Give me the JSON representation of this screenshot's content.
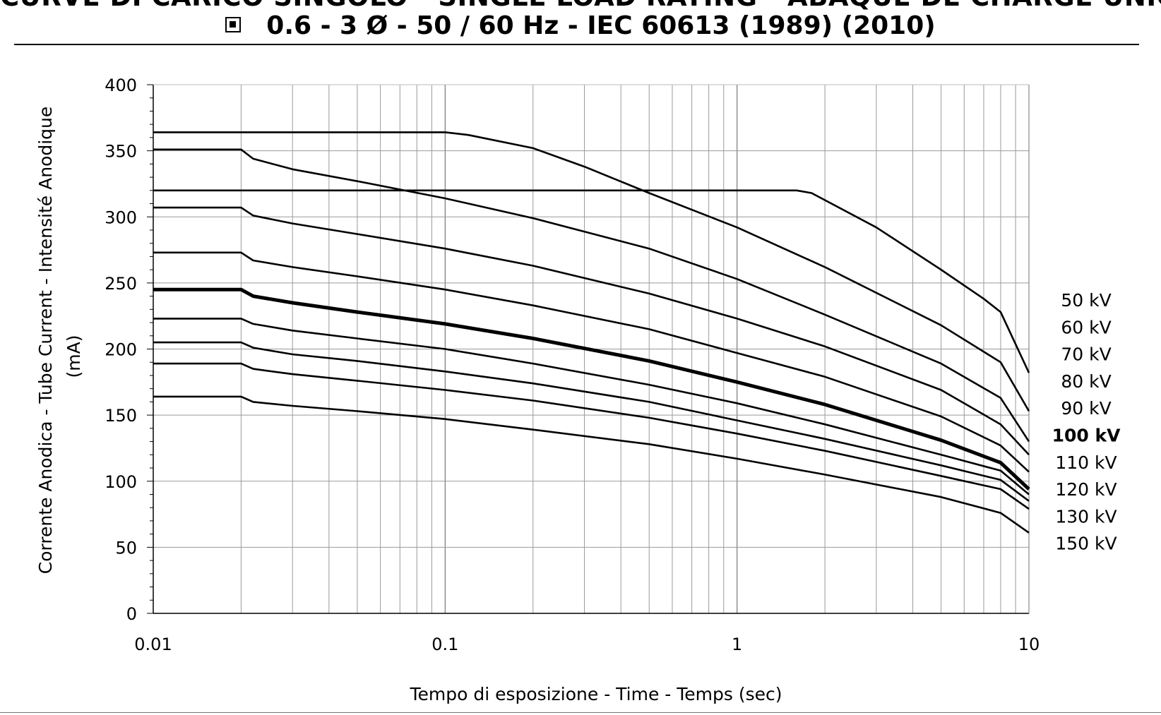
{
  "header": {
    "title_line1": "CURVE DI CARICO SINGOLO - SINGLE LOAD RATING - ABAQUE DE CHARGE UNIQUE",
    "title_line2": "0.6  -  3 Ø  -  50 / 60 Hz  -  IEC 60613 (1989) (2010)",
    "focal_icon": "square-focal-spot-icon"
  },
  "chart_data": {
    "type": "line",
    "title": "",
    "xlabel": "Tempo di esposizione - Time - Temps  (sec)",
    "ylabel_line1": "Corrente Anodica - Tube Current - Intensité Anodique",
    "ylabel_line2": "(mA)",
    "x_scale": "log",
    "xlim": [
      0.01,
      10
    ],
    "ylim": [
      0,
      400
    ],
    "x_ticks": [
      0.01,
      0.1,
      1,
      10
    ],
    "x_tick_labels": [
      "0.01",
      "0.1",
      "1",
      "10"
    ],
    "y_ticks": [
      0,
      50,
      100,
      150,
      200,
      250,
      300,
      350,
      400
    ],
    "y_tick_labels": [
      "0",
      "50",
      "100",
      "150",
      "200",
      "250",
      "300",
      "350",
      "400"
    ],
    "grid": true,
    "legend_placement": "right",
    "series": [
      {
        "name": "50 kV",
        "bold": false,
        "x": [
          0.01,
          1.6,
          1.8,
          3,
          5,
          7,
          8,
          10
        ],
        "y": [
          320,
          320,
          318,
          292,
          260,
          238,
          228,
          182
        ]
      },
      {
        "name": "60 kV",
        "bold": false,
        "x": [
          0.01,
          0.1,
          0.12,
          0.2,
          0.3,
          0.5,
          1,
          2,
          5,
          8,
          10
        ],
        "y": [
          364,
          364,
          362,
          352,
          338,
          318,
          292,
          262,
          218,
          190,
          153
        ]
      },
      {
        "name": "70 kV",
        "bold": false,
        "x": [
          0.01,
          0.02,
          0.022,
          0.03,
          0.05,
          0.1,
          0.2,
          0.5,
          1,
          2,
          5,
          8,
          10
        ],
        "y": [
          351,
          351,
          344,
          336,
          327,
          314,
          299,
          276,
          253,
          226,
          189,
          163,
          130
        ]
      },
      {
        "name": "80 kV",
        "bold": false,
        "x": [
          0.01,
          0.02,
          0.022,
          0.03,
          0.05,
          0.1,
          0.2,
          0.5,
          1,
          2,
          5,
          8,
          10
        ],
        "y": [
          307,
          307,
          301,
          295,
          287,
          276,
          263,
          242,
          223,
          202,
          169,
          143,
          120
        ]
      },
      {
        "name": "90 kV",
        "bold": false,
        "x": [
          0.01,
          0.02,
          0.022,
          0.03,
          0.05,
          0.1,
          0.2,
          0.5,
          1,
          2,
          5,
          8,
          10
        ],
        "y": [
          273,
          273,
          267,
          262,
          255,
          245,
          233,
          215,
          197,
          179,
          149,
          127,
          107
        ]
      },
      {
        "name": "100 kV",
        "bold": true,
        "x": [
          0.01,
          0.02,
          0.022,
          0.03,
          0.05,
          0.1,
          0.2,
          0.5,
          1,
          2,
          5,
          8,
          10
        ],
        "y": [
          245,
          245,
          240,
          235,
          228,
          219,
          208,
          191,
          175,
          158,
          131,
          114,
          94
        ]
      },
      {
        "name": "110 kV",
        "bold": false,
        "x": [
          0.01,
          0.02,
          0.022,
          0.03,
          0.05,
          0.1,
          0.2,
          0.5,
          1,
          2,
          5,
          8,
          10
        ],
        "y": [
          223,
          223,
          219,
          214,
          208,
          200,
          189,
          173,
          159,
          143,
          120,
          108,
          90
        ]
      },
      {
        "name": "120 kV",
        "bold": false,
        "x": [
          0.01,
          0.02,
          0.022,
          0.03,
          0.05,
          0.1,
          0.2,
          0.5,
          1,
          2,
          5,
          8,
          10
        ],
        "y": [
          205,
          205,
          201,
          196,
          191,
          183,
          174,
          160,
          146,
          132,
          112,
          101,
          85
        ]
      },
      {
        "name": "130 kV",
        "bold": false,
        "x": [
          0.01,
          0.02,
          0.022,
          0.03,
          0.05,
          0.1,
          0.2,
          0.5,
          1,
          2,
          5,
          8,
          10
        ],
        "y": [
          189,
          189,
          185,
          181,
          176,
          169,
          161,
          148,
          136,
          123,
          104,
          94,
          79
        ]
      },
      {
        "name": "150 kV",
        "bold": false,
        "x": [
          0.01,
          0.02,
          0.022,
          0.03,
          0.05,
          0.1,
          0.2,
          0.5,
          1,
          2,
          5,
          8,
          10
        ],
        "y": [
          164,
          164,
          160,
          157,
          153,
          147,
          139,
          128,
          117,
          105,
          88,
          76,
          61
        ]
      }
    ]
  }
}
